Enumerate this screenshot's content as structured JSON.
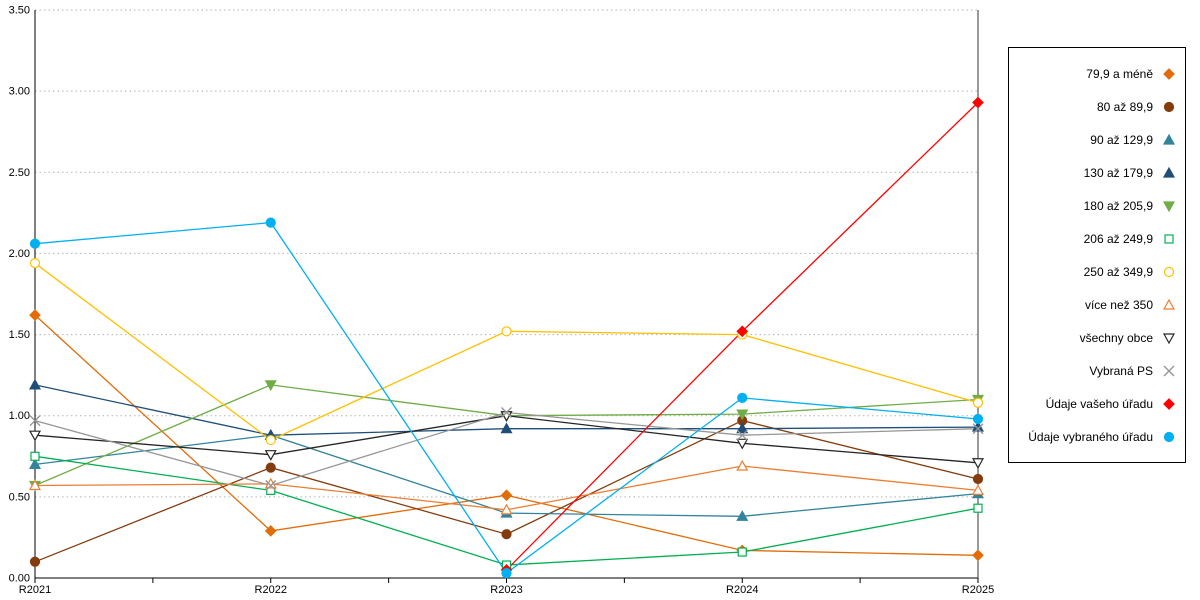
{
  "chart_data": {
    "type": "line",
    "title": "",
    "xlabel": "",
    "ylabel": "",
    "categories": [
      "R2021",
      "R2022",
      "R2023",
      "R2024",
      "R2025"
    ],
    "ylim": [
      0,
      3.5
    ],
    "ytick_step": 0.5,
    "y_tick_labels": [
      "0.00",
      "0.50",
      "1.00",
      "1.50",
      "2.00",
      "2.50",
      "3.00",
      "3.50"
    ],
    "grid": "horizontal-dotted",
    "legend_position": "right",
    "series": [
      {
        "name": "79,9 a méně",
        "color": "#E36C0A",
        "marker": "diamond",
        "filled": true,
        "values": [
          1.62,
          0.29,
          0.51,
          0.17,
          0.14
        ]
      },
      {
        "name": "80 až 89,9",
        "color": "#843C0C",
        "marker": "circle",
        "filled": true,
        "values": [
          0.1,
          0.68,
          0.27,
          0.97,
          0.61
        ]
      },
      {
        "name": "90 až 129,9",
        "color": "#31849B",
        "marker": "triangle-up",
        "filled": true,
        "values": [
          0.7,
          0.88,
          0.4,
          0.38,
          0.52
        ]
      },
      {
        "name": "130 až 179,9",
        "color": "#1F4E79",
        "marker": "triangle-up",
        "filled": true,
        "values": [
          1.19,
          0.88,
          0.92,
          0.92,
          0.93
        ]
      },
      {
        "name": "180 až 205,9",
        "color": "#70AD47",
        "marker": "triangle-down",
        "filled": true,
        "values": [
          0.57,
          1.19,
          1.0,
          1.01,
          1.1
        ]
      },
      {
        "name": "206 až 249,9",
        "color": "#00B050",
        "marker": "square",
        "filled": false,
        "values": [
          0.75,
          0.54,
          0.08,
          0.16,
          0.43
        ]
      },
      {
        "name": "250 až 349,9",
        "color": "#FFC000",
        "marker": "circle",
        "filled": false,
        "values": [
          1.94,
          0.85,
          1.52,
          1.5,
          1.08
        ]
      },
      {
        "name": "více než 350",
        "color": "#ED7D31",
        "marker": "triangle-up",
        "filled": false,
        "values": [
          0.57,
          0.58,
          0.42,
          0.69,
          0.54
        ]
      },
      {
        "name": "všechny obce",
        "color": "#262626",
        "marker": "triangle-down",
        "filled": false,
        "values": [
          0.88,
          0.76,
          1.0,
          0.83,
          0.71
        ]
      },
      {
        "name": "Vybraná PS",
        "color": "#969696",
        "marker": "x",
        "filled": false,
        "values": [
          0.97,
          0.57,
          1.02,
          0.88,
          0.92
        ]
      },
      {
        "name": "Údaje vašeho úřadu",
        "color": "#FF0000",
        "marker": "diamond",
        "filled": true,
        "values": [
          null,
          null,
          0.05,
          1.52,
          2.93
        ]
      },
      {
        "name": "Údaje vybraného úřadu",
        "color": "#00B0F0",
        "marker": "circle",
        "filled": true,
        "values": [
          2.06,
          2.19,
          0.03,
          1.11,
          0.98
        ]
      }
    ]
  }
}
